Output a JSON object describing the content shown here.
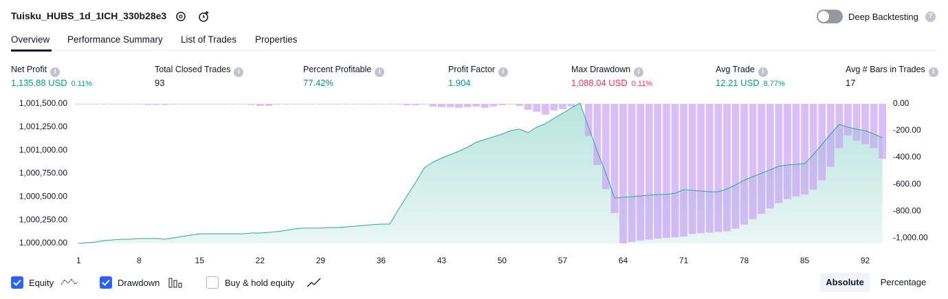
{
  "header": {
    "title": "Tuisku_HUBS_1d_1ICH_330b28e3",
    "toggle_label": "Deep Backtesting"
  },
  "tabs": [
    "Overview",
    "Performance Summary",
    "List of Trades",
    "Properties"
  ],
  "metrics": [
    {
      "label": "Net Profit",
      "value": "1,135.88 USD",
      "percent": "0.11%"
    },
    {
      "label": "Total Closed Trades",
      "value": "93"
    },
    {
      "label": "Percent Profitable",
      "value": "77.42%"
    },
    {
      "label": "Profit Factor",
      "value": "1.904"
    },
    {
      "label": "Max Drawdown",
      "value": "1,088.04 USD",
      "percent": "0.11%"
    },
    {
      "label": "Avg Trade",
      "value": "12.21 USD",
      "percent": "8.77%"
    },
    {
      "label": "Avg # Bars in Trades",
      "value": "17"
    }
  ],
  "chart_data": {
    "type": "line",
    "x": [
      1,
      2,
      3,
      4,
      5,
      6,
      7,
      8,
      9,
      10,
      11,
      12,
      13,
      14,
      15,
      16,
      17,
      18,
      19,
      20,
      21,
      22,
      23,
      24,
      25,
      26,
      27,
      28,
      29,
      30,
      31,
      32,
      33,
      34,
      35,
      36,
      37,
      38,
      39,
      40,
      41,
      42,
      43,
      44,
      45,
      46,
      47,
      48,
      49,
      50,
      51,
      52,
      53,
      54,
      55,
      56,
      57,
      58,
      59,
      60,
      61,
      62,
      63,
      64,
      65,
      66,
      67,
      68,
      69,
      70,
      71,
      72,
      73,
      74,
      75,
      76,
      77,
      78,
      79,
      80,
      81,
      82,
      83,
      84,
      85,
      86,
      87,
      88,
      89,
      90,
      91,
      92,
      93,
      94
    ],
    "series": [
      {
        "name": "Equity",
        "color": "#22ab94",
        "values": [
          1000000,
          1000007,
          1000015,
          1000030,
          1000037,
          1000044,
          1000044,
          1000052,
          1000052,
          1000052,
          1000044,
          1000059,
          1000074,
          1000089,
          1000103,
          1000103,
          1000103,
          1000103,
          1000103,
          1000103,
          1000111,
          1000111,
          1000118,
          1000126,
          1000140,
          1000155,
          1000163,
          1000163,
          1000163,
          1000170,
          1000170,
          1000177,
          1000185,
          1000192,
          1000200,
          1000207,
          1000207,
          1000362,
          1000510,
          1000658,
          1000813,
          1000872,
          1000916,
          1000953,
          1000990,
          1001034,
          1001086,
          1001116,
          1001145,
          1001175,
          1001212,
          1001227,
          1001190,
          1001249,
          1001286,
          1001345,
          1001397,
          1001456,
          1001507,
          1001249,
          1000990,
          1000754,
          1000488,
          1000495,
          1000502,
          1000510,
          1000517,
          1000525,
          1000525,
          1000539,
          1000576,
          1000569,
          1000562,
          1000554,
          1000554,
          1000584,
          1000628,
          1000680,
          1000717,
          1000754,
          1000791,
          1000828,
          1000842,
          1000850,
          1000857,
          1000953,
          1001064,
          1001175,
          1001278,
          1001249,
          1001227,
          1001212,
          1001175,
          1001136
        ]
      },
      {
        "name": "Drawdown",
        "type": "bar",
        "axis": "y2",
        "color": "#c9a3f5",
        "values": [
          0,
          -5,
          -5,
          0,
          0,
          0,
          0,
          -5,
          -8,
          -8,
          -8,
          0,
          0,
          0,
          0,
          0,
          0,
          0,
          0,
          0,
          -8,
          -15,
          -15,
          -5,
          0,
          0,
          0,
          0,
          -5,
          -5,
          -5,
          -5,
          0,
          0,
          0,
          0,
          0,
          -5,
          -10,
          -10,
          -5,
          -20,
          -25,
          -25,
          -30,
          -25,
          -20,
          -30,
          -20,
          -10,
          0,
          -15,
          -45,
          -60,
          -80,
          -50,
          -40,
          -20,
          0,
          -240,
          -456,
          -636,
          -815,
          -1040,
          -1030,
          -1020,
          -1012,
          -1005,
          -1000,
          -995,
          -990,
          -970,
          -965,
          -960,
          -955,
          -950,
          -930,
          -900,
          -860,
          -820,
          -780,
          -740,
          -710,
          -690,
          -675,
          -640,
          -570,
          -470,
          -330,
          -235,
          -275,
          -300,
          -330,
          -410
        ]
      }
    ],
    "xlim": [
      0.5,
      94.5
    ],
    "xticks": [
      1,
      8,
      15,
      22,
      29,
      36,
      43,
      50,
      57,
      64,
      71,
      78,
      85,
      92
    ],
    "ylim": [
      1000000,
      1001500
    ],
    "yticks": [
      {
        "value": 1000000,
        "label": "1,000,000.00"
      },
      {
        "value": 1000250,
        "label": "1,000,250.00"
      },
      {
        "value": 1000500,
        "label": "1,000,500.00"
      },
      {
        "value": 1000750,
        "label": "1,000,750.00"
      },
      {
        "value": 1001000,
        "label": "1,001,000.00"
      },
      {
        "value": 1001250,
        "label": "1,001,250.00"
      },
      {
        "value": 1001500,
        "label": "1,001,500.00"
      }
    ],
    "y2lim": [
      -1040,
      0
    ],
    "y2ticks": [
      {
        "value": 0,
        "label": "0.00"
      },
      {
        "value": -200,
        "label": "-200.00"
      },
      {
        "value": -400,
        "label": "-400.00"
      },
      {
        "value": -600,
        "label": "-600.00"
      },
      {
        "value": -800,
        "label": "-800.00"
      },
      {
        "value": -1000,
        "label": "-1,000.00"
      }
    ],
    "grid": false
  },
  "legend_extra": "Buy & hold equity",
  "modes": [
    "Absolute",
    "Percentage"
  ]
}
